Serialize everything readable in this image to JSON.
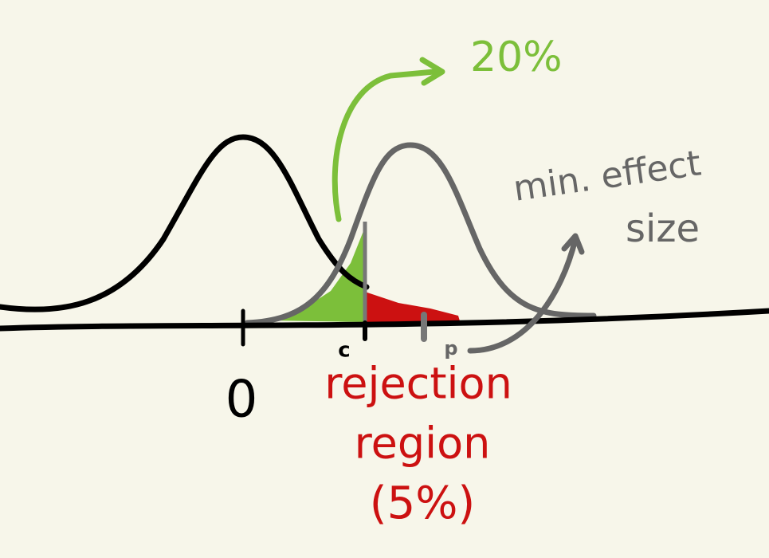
{
  "labels": {
    "power": "20%",
    "effect": [
      "min. effect",
      "size"
    ],
    "zero": "0",
    "critical": "c",
    "point": "p",
    "rejection": [
      "rejection",
      "region",
      "(5%)"
    ]
  }
}
